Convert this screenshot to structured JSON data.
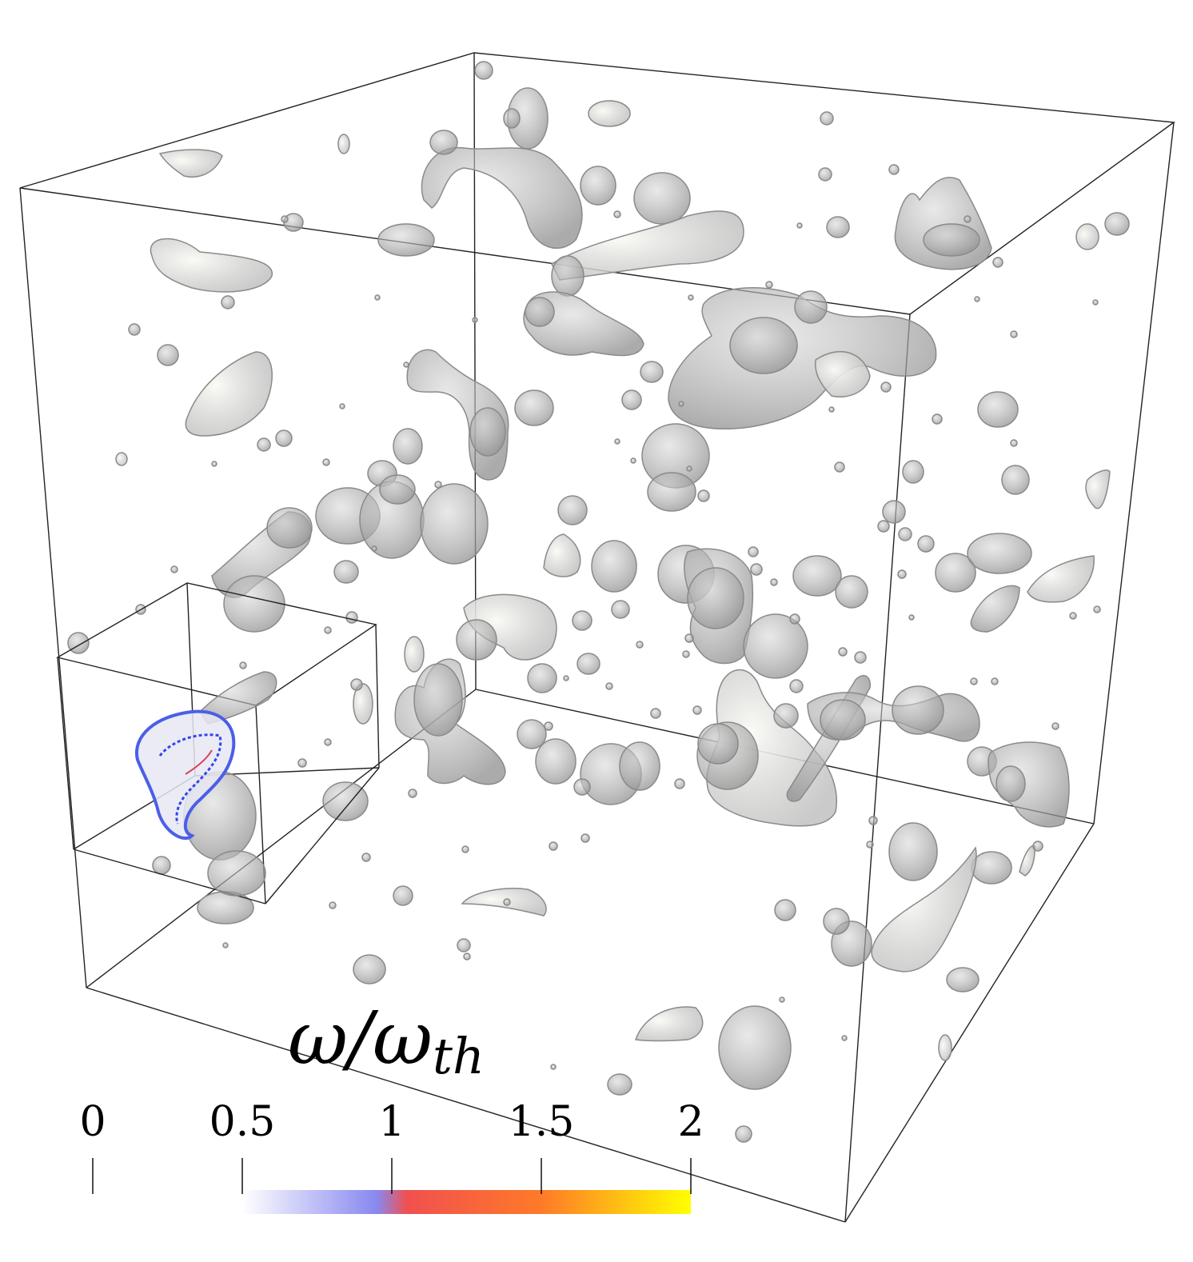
{
  "colorbar": {
    "title_symbol": "ω/ω",
    "title_subscript": "th",
    "ticks": [
      "0",
      "0.5",
      "1",
      "1.5",
      "2"
    ],
    "range": [
      0,
      2
    ],
    "gradient_range": [
      0.5,
      2
    ],
    "gradient_stops": [
      {
        "value": 0.5,
        "color": "#ffffff"
      },
      {
        "value": 0.95,
        "color": "#8888f0"
      },
      {
        "value": 1.05,
        "color": "#f05050"
      },
      {
        "value": 1.5,
        "color": "#ff7a28"
      },
      {
        "value": 2.0,
        "color": "#ffff00"
      }
    ]
  },
  "colors": {
    "blob_fill": "#bdbdbd",
    "blob_highlight": "#f4f4f0",
    "blob_stroke": "#8a8a8a",
    "box_line": "#000000",
    "highlight_blue": "#3344ee"
  }
}
